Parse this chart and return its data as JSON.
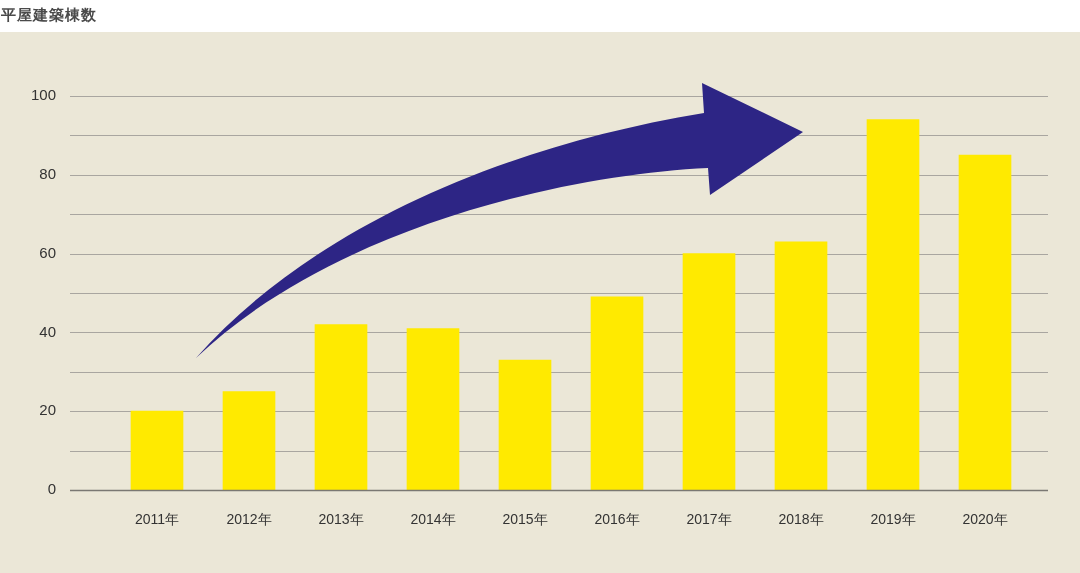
{
  "chart_data": {
    "type": "bar",
    "title": "平屋建築棟数",
    "categories": [
      "2011年",
      "2012年",
      "2013年",
      "2014年",
      "2015年",
      "2016年",
      "2017年",
      "2018年",
      "2019年",
      "2020年"
    ],
    "values": [
      20,
      25,
      42,
      41,
      33,
      49,
      60,
      63,
      94,
      85
    ],
    "color": "#ffea00",
    "ylim": [
      0,
      100
    ],
    "yticks": [
      0,
      {
        "value": 10,
        "label": null
      },
      20,
      {
        "value": 30,
        "label": null
      },
      40,
      {
        "value": 50,
        "label": null
      },
      60,
      {
        "value": 70,
        "label": null
      },
      80,
      {
        "value": 90,
        "label": null
      },
      100
    ],
    "grid": "y"
  }
}
